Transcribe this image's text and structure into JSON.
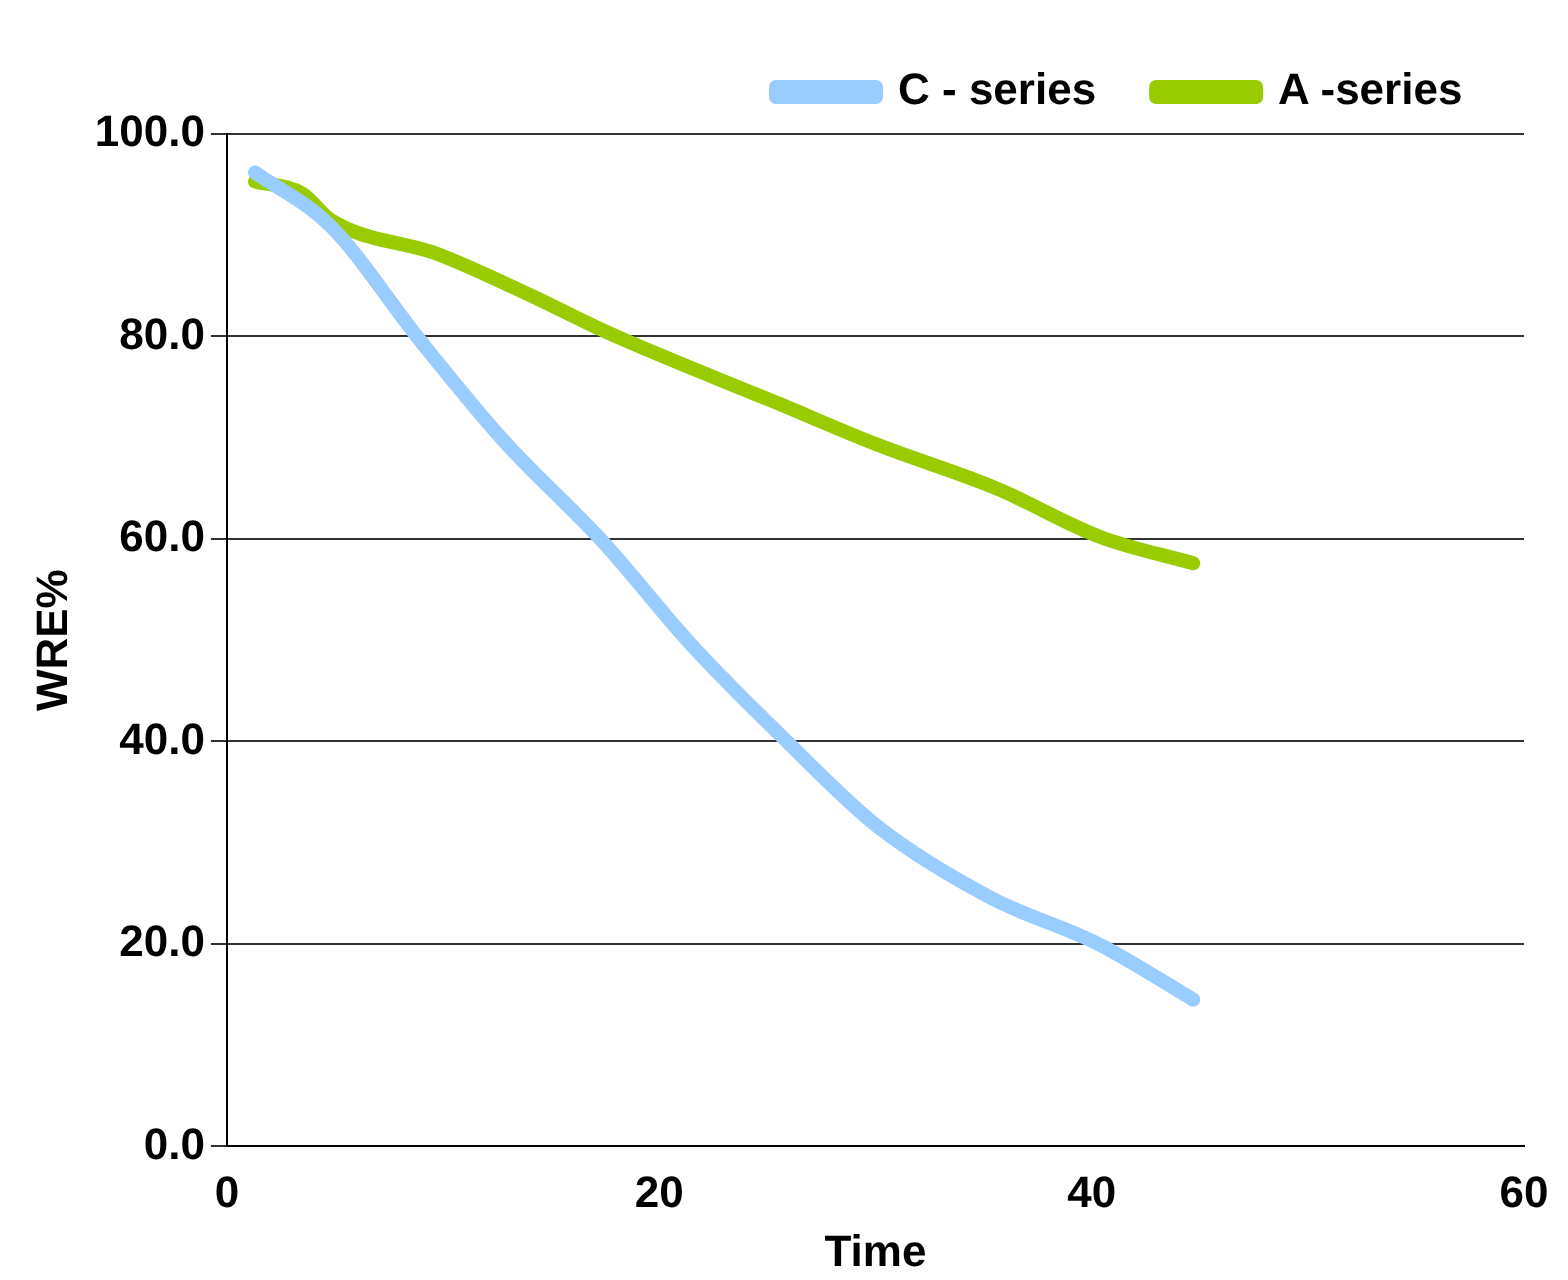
{
  "chart_data": {
    "type": "line",
    "xlabel": "Time",
    "ylabel": "WRE%",
    "xlim": [
      0,
      60
    ],
    "xticks": [
      0,
      20,
      40,
      60
    ],
    "ylim": [
      0,
      100
    ],
    "yticks": [
      {
        "value": 0,
        "label": "0.0"
      },
      {
        "value": 20,
        "label": "20.0"
      },
      {
        "value": 40,
        "label": "40.0"
      },
      {
        "value": 60,
        "label": "60.0"
      },
      {
        "value": 80,
        "label": "80.0"
      },
      {
        "value": 100,
        "label": "100.0"
      }
    ],
    "grid": "y",
    "legend": "top",
    "marker": "none",
    "line_style": "solid",
    "series": [
      {
        "name": "C - series",
        "color": "#99ccff",
        "x": [
          1.3,
          4.8,
          8.9,
          12.8,
          17.4,
          21.5,
          25.9,
          30.1,
          35.3,
          40.4,
          44.7
        ],
        "values": [
          96.2,
          90.9,
          79.7,
          69.7,
          59.7,
          49.5,
          40,
          31.6,
          24.6,
          19.9,
          14.5
        ]
      },
      {
        "name": "A -series",
        "color": "#99cc00",
        "x": [
          1.3,
          3.5,
          4.8,
          9.8,
          14,
          17.7,
          25.6,
          30.1,
          35.6,
          40.4,
          44.7
        ],
        "values": [
          95.3,
          94.1,
          91.5,
          88.1,
          84.1,
          80.3,
          73.3,
          69.3,
          65,
          60.2,
          57.6
        ]
      }
    ]
  }
}
